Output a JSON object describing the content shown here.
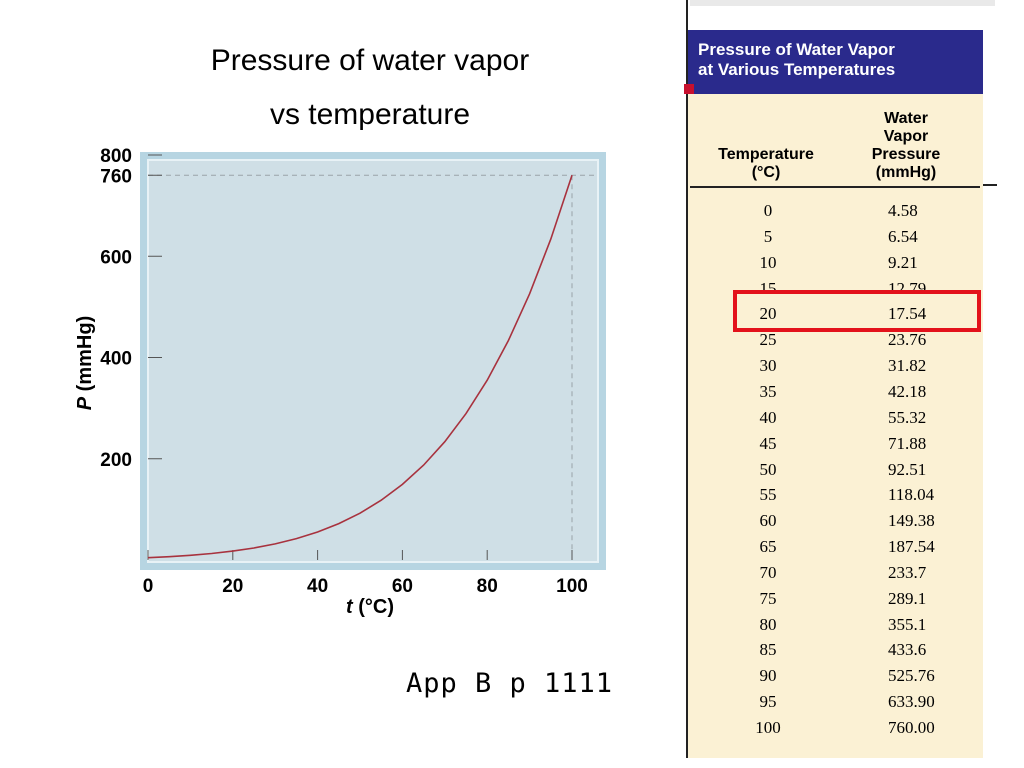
{
  "slide": {
    "title_line1": "Pressure of water vapor",
    "title_line2": "vs temperature",
    "reference": "App B p 1111"
  },
  "chart_data": {
    "type": "line",
    "xlabel_italic": "t",
    "xlabel_unit": " (°C)",
    "ylabel_italic": "P",
    "ylabel_unit": " (mmHg)",
    "xlim": [
      0,
      100
    ],
    "ylim": [
      0,
      800
    ],
    "xticks": [
      0,
      20,
      40,
      60,
      80,
      100
    ],
    "yticks": [
      200,
      400,
      600,
      760,
      800
    ],
    "ytick_labels": [
      "200",
      "400",
      "600",
      "760",
      "800"
    ],
    "reference_lines": {
      "y": 760,
      "x": 100
    },
    "grid": false,
    "colors": {
      "curve": "#a8323e",
      "plot_bg": "#cfdfe6",
      "frame": "#b7d5e2"
    },
    "series": [
      {
        "x": [
          0,
          5,
          10,
          15,
          20,
          25,
          30,
          35,
          40,
          45,
          50,
          55,
          60,
          65,
          70,
          75,
          80,
          85,
          90,
          95,
          100
        ],
        "values": [
          4.58,
          6.54,
          9.21,
          12.79,
          17.54,
          23.76,
          31.82,
          42.18,
          55.32,
          71.88,
          92.51,
          118.04,
          149.38,
          187.54,
          233.7,
          289.1,
          355.1,
          433.6,
          525.76,
          633.9,
          760.0
        ]
      }
    ]
  },
  "table": {
    "title_line1": "Pressure of Water Vapor",
    "title_line2": "at Various Temperatures",
    "col1_line1": "Temperature",
    "col1_line2": "(°C)",
    "col2_line1": "Water",
    "col2_line2": "Vapor",
    "col2_line3": "Pressure",
    "col2_line4": "(mmHg)",
    "header_color": "#2a2a8c",
    "body_color": "#fbf1d4",
    "highlight_color": "#e3121b",
    "highlighted_row": 4,
    "rows": [
      {
        "t": "0",
        "p": "4.58"
      },
      {
        "t": "5",
        "p": "6.54"
      },
      {
        "t": "10",
        "p": "9.21"
      },
      {
        "t": "15",
        "p": "12.79"
      },
      {
        "t": "20",
        "p": "17.54"
      },
      {
        "t": "25",
        "p": "23.76"
      },
      {
        "t": "30",
        "p": "31.82"
      },
      {
        "t": "35",
        "p": "42.18"
      },
      {
        "t": "40",
        "p": "55.32"
      },
      {
        "t": "45",
        "p": "71.88"
      },
      {
        "t": "50",
        "p": "92.51"
      },
      {
        "t": "55",
        "p": "118.04"
      },
      {
        "t": "60",
        "p": "149.38"
      },
      {
        "t": "65",
        "p": "187.54"
      },
      {
        "t": "70",
        "p": "233.7"
      },
      {
        "t": "75",
        "p": "289.1"
      },
      {
        "t": "80",
        "p": "355.1"
      },
      {
        "t": "85",
        "p": "433.6"
      },
      {
        "t": "90",
        "p": "525.76"
      },
      {
        "t": "95",
        "p": "633.90"
      },
      {
        "t": "100",
        "p": "760.00"
      }
    ]
  }
}
